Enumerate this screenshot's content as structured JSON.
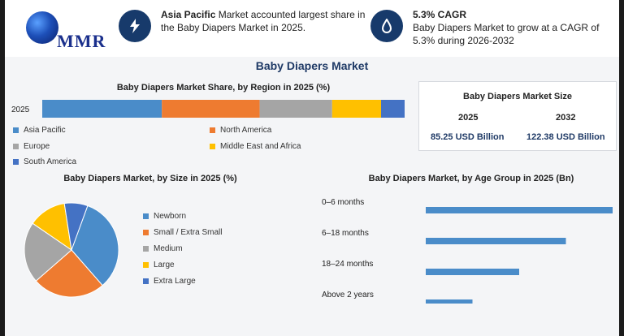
{
  "header": {
    "logo_text": "MMR",
    "kpi1": {
      "bold": "Asia Pacific",
      "line1_rest": " Market accounted largest share in",
      "line2": "the Baby Diapers Market in 2025.",
      "icon": "lightning-icon"
    },
    "kpi2": {
      "bold": "5.3% CAGR",
      "line1": "Baby Diapers Market to grow at a CAGR of",
      "line2": "5.3% during 2026-2032",
      "icon": "drop-icon"
    }
  },
  "main_title": "Baby Diapers Market",
  "market_size": {
    "title": "Baby Diapers Market Size",
    "year1": "2025",
    "value1": "85.25",
    "unit1": " USD Billion",
    "year2": "2032",
    "value2": "122.38",
    "unit2": " USD Billion"
  },
  "chart_data": [
    {
      "type": "bar",
      "orientation": "horizontal-stacked",
      "title": "Baby Diapers Market Share, by Region in 2025 (%)",
      "categories": [
        "2025"
      ],
      "series": [
        {
          "name": "Asia Pacific",
          "values": [
            33
          ],
          "color": "#4a8cc9"
        },
        {
          "name": "North America",
          "values": [
            27
          ],
          "color": "#ee7b30"
        },
        {
          "name": "Europe",
          "values": [
            20
          ],
          "color": "#a5a5a5"
        },
        {
          "name": "Middle East and Africa",
          "values": [
            13.5
          ],
          "color": "#ffc000"
        },
        {
          "name": "South America",
          "values": [
            6.5
          ],
          "color": "#4472c4"
        }
      ],
      "xlim": [
        0,
        100
      ]
    },
    {
      "type": "pie",
      "title": "Baby Diapers Market, by Size in 2025 (%)",
      "labels": [
        "Newborn",
        "Small / Extra Small",
        "Medium",
        "Large",
        "Extra Large"
      ],
      "values": [
        33,
        25,
        21,
        13,
        8
      ],
      "colors": [
        "#4a8cc9",
        "#ee7b30",
        "#a5a5a5",
        "#ffc000",
        "#4472c4"
      ]
    },
    {
      "type": "bar",
      "orientation": "horizontal",
      "title": "Baby Diapers Market, by Age Group in 2025 (Bn)",
      "categories": [
        "0–6 months",
        "6–18 months",
        "18–24 months",
        "Above 2 years"
      ],
      "values": [
        34,
        25.5,
        17,
        8.5
      ],
      "xlim": [
        0,
        34
      ],
      "color": "#4a8cc9"
    }
  ]
}
